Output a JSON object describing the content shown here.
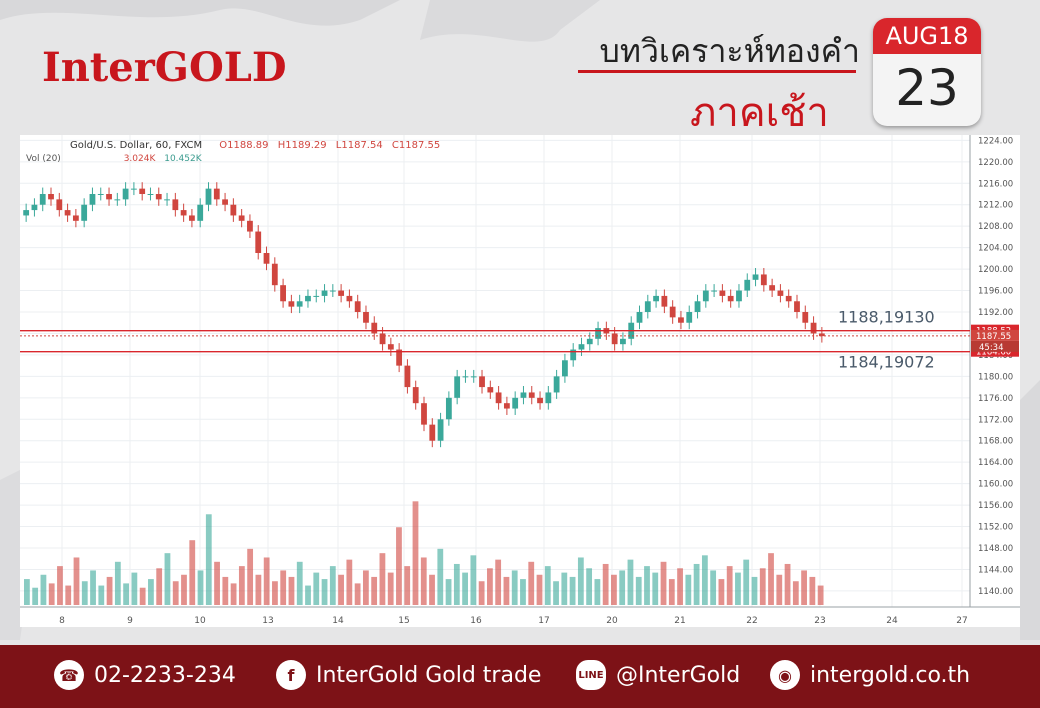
{
  "header": {
    "logo": "InterGOLD",
    "title": "บทวิเคราะห์ทองคำ",
    "subtitle": "ภาคเช้า",
    "calendar": {
      "month_year": "AUG18",
      "day": "23"
    }
  },
  "chart_header": {
    "symbol": "Gold/U.S. Dollar, 60, FXCM",
    "open": "O1188.89",
    "high": "H1189.29",
    "low": "L1187.54",
    "close": "C1187.55",
    "vol_label": "Vol (20)",
    "vol_a": "3.024K",
    "vol_b": "10.452K"
  },
  "annotations": {
    "upper": "1188,19130",
    "lower": "1184,19072"
  },
  "price_tags": {
    "upper": "1188.52",
    "current": "1187.55",
    "timer": "45:34",
    "lower": "1184.60"
  },
  "colors": {
    "up": "#3aa89a",
    "down": "#d0463f",
    "level": "#d9262c",
    "brand": "#c8161d",
    "footer": "#7d1217"
  },
  "chart_data": {
    "type": "candlestick",
    "x_tick_labels": [
      "8",
      "9",
      "10",
      "13",
      "14",
      "15",
      "16",
      "17",
      "20",
      "21",
      "22",
      "23",
      "24",
      "27"
    ],
    "y_ticks": [
      1140,
      1144,
      1148,
      1152,
      1156,
      1160,
      1164,
      1168,
      1172,
      1176,
      1180,
      1184,
      1188,
      1192,
      1196,
      1200,
      1204,
      1208,
      1212,
      1216,
      1220,
      1224
    ],
    "ylim": [
      1137,
      1225
    ],
    "levels": [
      1188.52,
      1184.6
    ],
    "close_path": [
      1211,
      1212,
      1214,
      1213,
      1211,
      1210,
      1209,
      1212,
      1214,
      1214,
      1213,
      1213,
      1215,
      1215,
      1214,
      1214,
      1213,
      1213,
      1211,
      1210,
      1209,
      1212,
      1215,
      1213,
      1212,
      1210,
      1209,
      1207,
      1203,
      1201,
      1197,
      1194,
      1193,
      1194,
      1195,
      1195,
      1196,
      1196,
      1195,
      1194,
      1192,
      1190,
      1188,
      1186,
      1185,
      1182,
      1178,
      1175,
      1171,
      1168,
      1172,
      1176,
      1180,
      1180,
      1180,
      1178,
      1177,
      1175,
      1174,
      1176,
      1177,
      1176,
      1175,
      1177,
      1180,
      1183,
      1185,
      1186,
      1187,
      1189,
      1188,
      1186,
      1187,
      1190,
      1192,
      1194,
      1195,
      1193,
      1191,
      1190,
      1192,
      1194,
      1196,
      1196,
      1195,
      1194,
      1196,
      1198,
      1199,
      1197,
      1196,
      1195,
      1194,
      1192,
      1190,
      1188,
      1187.5
    ],
    "volume_approx": [
      12,
      8,
      14,
      10,
      18,
      9,
      22,
      11,
      16,
      9,
      13,
      20,
      10,
      15,
      8,
      12,
      17,
      24,
      11,
      14,
      30,
      16,
      42,
      20,
      13,
      10,
      18,
      26,
      14,
      22,
      11,
      16,
      13,
      20,
      9,
      15,
      12,
      18,
      14,
      21,
      10,
      16,
      13,
      24,
      15,
      36,
      18,
      48,
      22,
      14,
      26,
      12,
      19,
      15,
      23,
      11,
      17,
      21,
      13,
      16,
      12,
      20,
      14,
      18,
      11,
      15,
      13,
      22,
      17,
      12,
      19,
      14,
      16,
      21,
      13,
      18,
      15,
      20,
      12,
      17,
      14,
      19,
      23,
      16,
      12,
      18,
      15,
      21,
      13,
      17,
      24,
      14,
      19,
      11,
      16,
      13,
      9
    ]
  },
  "footer": {
    "phone": "02-2233-234",
    "facebook": "InterGold Gold trade",
    "line": "@InterGold",
    "web": "intergold.co.th",
    "phone_icon": "phone-icon",
    "facebook_icon": "facebook-icon",
    "line_icon": "line-icon",
    "web_icon": "globe-icon"
  }
}
